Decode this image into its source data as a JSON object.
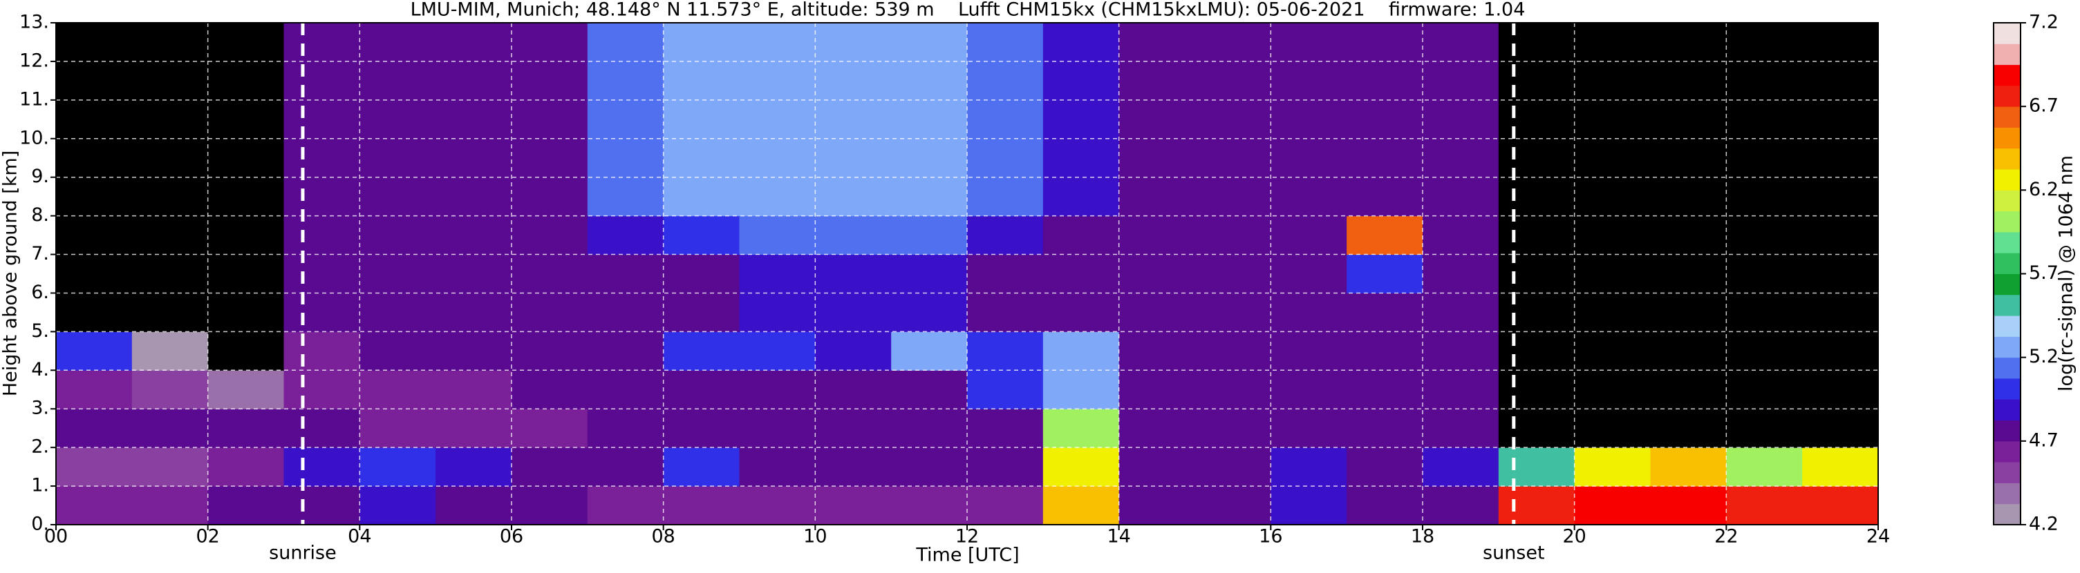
{
  "chart_data": {
    "type": "heatmap",
    "title": "LMU-MIM, Munich; 48.148° N 11.573° E, altitude: 539 m    Lufft CHM15kx (CHM15kxLMU): 05-06-2021    firmware: 1.04",
    "x_label": "Time [UTC]",
    "y_label": "Height above ground [km]",
    "colorbar_label": "log(rc-signal) @ 1064 nm",
    "x": [
      0,
      1,
      2,
      3,
      4,
      5,
      6,
      7,
      8,
      9,
      10,
      11,
      12,
      13,
      14,
      15,
      16,
      17,
      18,
      19,
      20,
      21,
      22,
      23
    ],
    "y": [
      0,
      1,
      2,
      3,
      4,
      5,
      6,
      7,
      8,
      9,
      10,
      11,
      12
    ],
    "z": [
      [
        4.6,
        4.6,
        4.7,
        4.8,
        4.9,
        4.8,
        4.7,
        4.6,
        4.6,
        4.6,
        4.6,
        4.6,
        4.6,
        6.4,
        4.7,
        4.7,
        4.9,
        4.8,
        4.7,
        6.8,
        6.9,
        6.9,
        6.8,
        6.8
      ],
      [
        4.5,
        4.5,
        4.6,
        4.9,
        5.0,
        4.9,
        4.8,
        4.8,
        5.0,
        4.8,
        4.8,
        4.7,
        4.7,
        6.3,
        4.8,
        4.8,
        4.9,
        4.8,
        4.9,
        5.5,
        6.3,
        6.4,
        6.0,
        6.2
      ],
      [
        4.7,
        4.8,
        4.8,
        4.7,
        4.6,
        4.6,
        4.6,
        4.7,
        4.7,
        4.7,
        4.7,
        4.7,
        4.7,
        6.0,
        4.7,
        4.8,
        4.7,
        4.7,
        4.8,
        4.1,
        4.1,
        4.1,
        4.1,
        4.1
      ],
      [
        4.6,
        4.5,
        4.4,
        4.6,
        4.6,
        4.6,
        4.7,
        4.7,
        4.8,
        4.8,
        4.8,
        4.8,
        5.0,
        5.2,
        4.8,
        4.7,
        4.7,
        4.7,
        4.7,
        4.1,
        4.1,
        4.1,
        4.1,
        4.1
      ],
      [
        5.0,
        4.3,
        4.1,
        4.6,
        4.7,
        4.7,
        4.7,
        4.8,
        5.0,
        5.0,
        4.9,
        5.3,
        5.0,
        5.2,
        4.8,
        4.8,
        4.7,
        4.7,
        4.7,
        4.1,
        4.1,
        4.1,
        4.1,
        4.1
      ],
      [
        4.1,
        4.1,
        4.1,
        4.7,
        4.7,
        4.7,
        4.8,
        4.8,
        4.8,
        4.9,
        4.9,
        4.9,
        4.8,
        4.8,
        4.8,
        4.8,
        4.8,
        4.8,
        4.8,
        4.1,
        4.1,
        4.1,
        4.1,
        4.1
      ],
      [
        4.1,
        4.1,
        4.1,
        4.7,
        4.7,
        4.7,
        4.8,
        4.8,
        4.8,
        4.9,
        4.9,
        4.9,
        4.8,
        4.8,
        4.8,
        4.8,
        4.8,
        5.0,
        4.8,
        4.1,
        4.1,
        4.1,
        4.1,
        4.1
      ],
      [
        4.1,
        4.1,
        4.1,
        4.7,
        4.7,
        4.7,
        4.8,
        4.9,
        5.0,
        5.1,
        5.1,
        5.1,
        4.9,
        4.8,
        4.8,
        4.8,
        4.8,
        6.6,
        4.8,
        4.1,
        4.1,
        4.1,
        4.1,
        4.1
      ],
      [
        4.1,
        4.1,
        4.1,
        4.7,
        4.7,
        4.7,
        4.8,
        5.1,
        5.2,
        5.3,
        5.3,
        5.3,
        5.1,
        4.9,
        4.8,
        4.8,
        4.8,
        4.8,
        4.8,
        4.1,
        4.1,
        4.1,
        4.1,
        4.1
      ],
      [
        4.1,
        4.1,
        4.1,
        4.7,
        4.7,
        4.7,
        4.8,
        5.1,
        5.2,
        5.3,
        5.3,
        5.3,
        5.1,
        4.9,
        4.8,
        4.8,
        4.8,
        4.8,
        4.8,
        4.1,
        4.1,
        4.1,
        4.1,
        4.1
      ],
      [
        4.1,
        4.1,
        4.1,
        4.7,
        4.7,
        4.7,
        4.8,
        5.1,
        5.2,
        5.3,
        5.3,
        5.3,
        5.1,
        4.9,
        4.8,
        4.8,
        4.8,
        4.8,
        4.8,
        4.1,
        4.1,
        4.1,
        4.1,
        4.1
      ],
      [
        4.1,
        4.1,
        4.1,
        4.7,
        4.7,
        4.7,
        4.8,
        5.1,
        5.2,
        5.3,
        5.3,
        5.3,
        5.1,
        4.9,
        4.8,
        4.8,
        4.8,
        4.8,
        4.8,
        4.1,
        4.1,
        4.1,
        4.1,
        4.1
      ],
      [
        4.1,
        4.1,
        4.1,
        4.7,
        4.7,
        4.7,
        4.8,
        5.1,
        5.2,
        5.3,
        5.3,
        5.3,
        5.1,
        4.9,
        4.8,
        4.8,
        4.8,
        4.8,
        4.8,
        4.1,
        4.1,
        4.1,
        4.1,
        4.1
      ]
    ],
    "xlim": [
      0,
      24
    ],
    "ylim": [
      0,
      13
    ],
    "xticks": [
      {
        "value": 0,
        "label": "00"
      },
      {
        "value": 2,
        "label": "02"
      },
      {
        "value": 4,
        "label": "04"
      },
      {
        "value": 6,
        "label": "06"
      },
      {
        "value": 8,
        "label": "08"
      },
      {
        "value": 10,
        "label": "10"
      },
      {
        "value": 12,
        "label": "12"
      },
      {
        "value": 14,
        "label": "14"
      },
      {
        "value": 16,
        "label": "16"
      },
      {
        "value": 18,
        "label": "18"
      },
      {
        "value": 20,
        "label": "20"
      },
      {
        "value": 22,
        "label": "22"
      },
      {
        "value": 24,
        "label": "24"
      }
    ],
    "yticks": [
      {
        "value": 0,
        "label": "0."
      },
      {
        "value": 1,
        "label": "1."
      },
      {
        "value": 2,
        "label": "2."
      },
      {
        "value": 3,
        "label": "3."
      },
      {
        "value": 4,
        "label": "4."
      },
      {
        "value": 5,
        "label": "5."
      },
      {
        "value": 6,
        "label": "6."
      },
      {
        "value": 7,
        "label": "7."
      },
      {
        "value": 8,
        "label": "8."
      },
      {
        "value": 9,
        "label": "9."
      },
      {
        "value": 10,
        "label": "10."
      },
      {
        "value": 11,
        "label": "11."
      },
      {
        "value": 12,
        "label": "12."
      },
      {
        "value": 13,
        "label": "13."
      }
    ],
    "clim": [
      4.2,
      7.2
    ],
    "cticks": [
      4.2,
      4.7,
      5.2,
      5.7,
      6.2,
      6.7,
      7.2
    ],
    "colormap": [
      "#a896b0",
      "#9a70aa",
      "#8a40a0",
      "#7a2098",
      "#5a0a90",
      "#3a10c8",
      "#3030e8",
      "#5070f0",
      "#80a8f8",
      "#a8d0f8",
      "#40c0a0",
      "#10a030",
      "#30c060",
      "#60e090",
      "#a0f060",
      "#d0f040",
      "#f0f000",
      "#f8c000",
      "#f89000",
      "#f06010",
      "#f02010",
      "#f80000",
      "#f0b0b0",
      "#f0e0e0"
    ],
    "under_color": "#000000",
    "grid": true,
    "vlines": [
      {
        "x": 3.25,
        "label": "sunrise"
      },
      {
        "x": 19.2,
        "label": "sunset"
      }
    ]
  }
}
